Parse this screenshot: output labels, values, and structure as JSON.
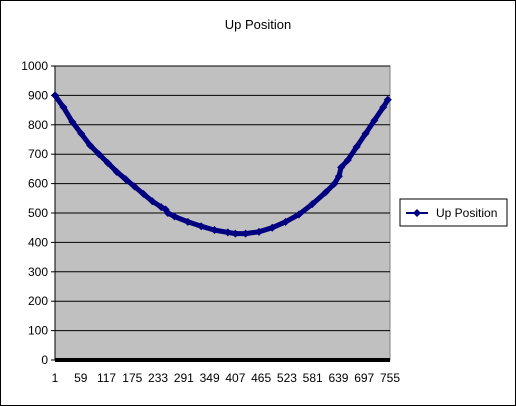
{
  "chart_data": {
    "type": "line",
    "title": "Up Position",
    "xlabel": "",
    "ylabel": "",
    "ylim": [
      0,
      1000
    ],
    "y_ticks": [
      0,
      100,
      200,
      300,
      400,
      500,
      600,
      700,
      800,
      900,
      1000
    ],
    "x_range": [
      1,
      755
    ],
    "x_tick_labels": [
      "1",
      "59",
      "117",
      "175",
      "233",
      "291",
      "349",
      "407",
      "465",
      "523",
      "581",
      "639",
      "697",
      "755"
    ],
    "x_tick_values": [
      1,
      59,
      117,
      175,
      233,
      291,
      349,
      407,
      465,
      523,
      581,
      639,
      697,
      755
    ],
    "grid": "horizontal",
    "legend_position": "right",
    "colors": {
      "series": "#000080",
      "plot_area": "#c0c0c0",
      "gridline": "#000000",
      "frame": "#000000"
    },
    "series": [
      {
        "name": "Up Position",
        "marker": "diamond",
        "points": [
          [
            1,
            900
          ],
          [
            20,
            860
          ],
          [
            40,
            810
          ],
          [
            60,
            770
          ],
          [
            80,
            730
          ],
          [
            100,
            700
          ],
          [
            120,
            670
          ],
          [
            140,
            640
          ],
          [
            160,
            615
          ],
          [
            180,
            590
          ],
          [
            200,
            565
          ],
          [
            220,
            540
          ],
          [
            240,
            520
          ],
          [
            250,
            512
          ],
          [
            255,
            500
          ],
          [
            270,
            488
          ],
          [
            300,
            470
          ],
          [
            330,
            455
          ],
          [
            360,
            442
          ],
          [
            390,
            434
          ],
          [
            407,
            430
          ],
          [
            430,
            430
          ],
          [
            460,
            436
          ],
          [
            490,
            450
          ],
          [
            520,
            470
          ],
          [
            550,
            495
          ],
          [
            580,
            530
          ],
          [
            610,
            570
          ],
          [
            630,
            600
          ],
          [
            640,
            625
          ],
          [
            645,
            655
          ],
          [
            660,
            680
          ],
          [
            680,
            725
          ],
          [
            700,
            770
          ],
          [
            720,
            815
          ],
          [
            740,
            860
          ],
          [
            750,
            885
          ]
        ]
      }
    ]
  }
}
